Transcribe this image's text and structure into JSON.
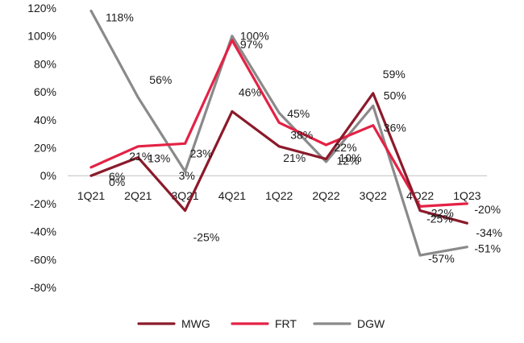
{
  "chart_data": {
    "type": "line",
    "title": "",
    "xlabel": "",
    "ylabel": "",
    "categories": [
      "1Q21",
      "2Q21",
      "3Q21",
      "4Q21",
      "1Q22",
      "2Q22",
      "3Q22",
      "4Q22",
      "1Q23"
    ],
    "yticks": [
      "120%",
      "100%",
      "80%",
      "60%",
      "40%",
      "20%",
      "0%",
      "-20%",
      "-40%",
      "-60%",
      "-80%"
    ],
    "ylim": [
      -80,
      120
    ],
    "grid": false,
    "legend": "bottom",
    "series": [
      {
        "name": "MWG",
        "color": "#8b1a2b",
        "values": [
          0,
          13,
          -25,
          46,
          21,
          12,
          59,
          -25,
          -34
        ],
        "labels": [
          "0%",
          "13%",
          "-25%",
          "46%",
          "21%",
          "12%",
          "59%",
          "-25%",
          "-34%"
        ]
      },
      {
        "name": "FRT",
        "color": "#e32245",
        "values": [
          6,
          21,
          23,
          97,
          38,
          22,
          36,
          -22,
          -20
        ],
        "labels": [
          "6%",
          "21%",
          "23%",
          "97%",
          "38%",
          "22%",
          "36%",
          "-22%",
          "-20%"
        ]
      },
      {
        "name": "DGW",
        "color": "#8a8a8a",
        "values": [
          118,
          56,
          3,
          100,
          45,
          10,
          50,
          -57,
          -51
        ],
        "labels": [
          "118%",
          "56%",
          "3%",
          "100%",
          "45%",
          "10%",
          "50%",
          "-57%",
          "-51%"
        ]
      }
    ]
  }
}
